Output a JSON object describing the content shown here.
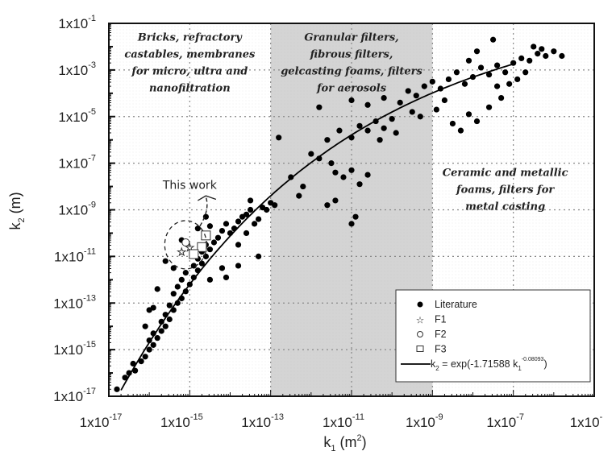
{
  "chart_data": {
    "type": "scatter",
    "title": "",
    "xlabel": "k1 (m2)",
    "xlabel_parts": {
      "base": "k",
      "sub": "1",
      "unit_open": " (m",
      "sup": "2",
      "unit_close": ")"
    },
    "ylabel": "k2 (m)",
    "ylabel_parts": {
      "base": "k",
      "sub": "2",
      "unit": " (m)"
    },
    "x_scale": "log",
    "y_scale": "log",
    "xlim": [
      1e-17,
      1e-05
    ],
    "ylim": [
      1e-17,
      0.1
    ],
    "grid": true,
    "x_ticks": [
      {
        "exp": -17,
        "label": "1x10",
        "sup": "-17"
      },
      {
        "exp": -15,
        "label": "1x10",
        "sup": "-15"
      },
      {
        "exp": -13,
        "label": "1x10",
        "sup": "-13"
      },
      {
        "exp": -11,
        "label": "1x10",
        "sup": "-11"
      },
      {
        "exp": -9,
        "label": "1x10",
        "sup": "-9"
      },
      {
        "exp": -7,
        "label": "1x10",
        "sup": "-7"
      },
      {
        "exp": -5,
        "label": "1x10",
        "sup": "-"
      }
    ],
    "y_ticks": [
      {
        "exp": -1,
        "label": "1x10",
        "sup": "-1"
      },
      {
        "exp": -3,
        "label": "1x10",
        "sup": "-3"
      },
      {
        "exp": -5,
        "label": "1x10",
        "sup": "-5"
      },
      {
        "exp": -7,
        "label": "1x10",
        "sup": "-7"
      },
      {
        "exp": -9,
        "label": "1x10",
        "sup": "-9"
      },
      {
        "exp": -11,
        "label": "1x10",
        "sup": "-11"
      },
      {
        "exp": -13,
        "label": "1x10",
        "sup": "-13"
      },
      {
        "exp": -15,
        "label": "1x10",
        "sup": "-15"
      },
      {
        "exp": -17,
        "label": "1x10",
        "sup": "-17"
      }
    ],
    "shaded_band": {
      "x_from_exp": -13,
      "x_to_exp": -9,
      "color": "#d4d4d4"
    },
    "regions": [
      {
        "name": "region-low-permeability",
        "lines": [
          "Bricks, refractory",
          "castables, membranes",
          "for micro, ultra and",
          "nanofiltration"
        ],
        "x_exp": -15,
        "y_exp_top": -1.75
      },
      {
        "name": "region-mid-permeability",
        "lines": [
          "Granular filters,",
          "fibrous filters,",
          "gelcasting foams, filters",
          "for aerosols"
        ],
        "x_exp": -11,
        "y_exp_top": -1.75
      },
      {
        "name": "region-high-permeability",
        "lines": [
          "Ceramic and metallic",
          "foams, filters for",
          "metal casting"
        ],
        "x_exp": -7.2,
        "y_exp_top": -7.55
      }
    ],
    "annotation": {
      "text": "This work",
      "x_exp": -15.0,
      "y_exp": -8.1
    },
    "fit": {
      "name": "k2 = exp(-1.71588 k1^-0.08093)",
      "a": -1.71588,
      "b": -0.08093,
      "x_from_exp": -16.7,
      "x_to_exp": -7.0
    },
    "legend": {
      "position": "lower right",
      "entries": [
        {
          "marker": "filled-circle",
          "label": "Literature"
        },
        {
          "marker": "star",
          "label": "F1"
        },
        {
          "marker": "open-circle",
          "label": "F2"
        },
        {
          "marker": "open-square",
          "label": "F3"
        },
        {
          "marker": "line",
          "label_base": "k",
          "label_sub1": "2",
          "label_mid": " = exp(-1.71588 k",
          "label_sub2": "1",
          "label_sup": "-0.08093",
          "label_end": ")"
        }
      ]
    },
    "series": [
      {
        "name": "Literature",
        "marker": "filled-circle",
        "points_log10": [
          [
            -16.8,
            -16.7
          ],
          [
            -16.6,
            -16.2
          ],
          [
            -16.5,
            -16.0
          ],
          [
            -16.35,
            -15.9
          ],
          [
            -16.4,
            -15.6
          ],
          [
            -16.2,
            -15.5
          ],
          [
            -16.1,
            -15.3
          ],
          [
            -16.0,
            -15.0
          ],
          [
            -15.9,
            -14.8
          ],
          [
            -16.0,
            -14.6
          ],
          [
            -15.8,
            -14.5
          ],
          [
            -15.7,
            -14.2
          ],
          [
            -15.9,
            -14.3
          ],
          [
            -15.6,
            -14.0
          ],
          [
            -15.7,
            -13.8
          ],
          [
            -15.5,
            -13.7
          ],
          [
            -15.6,
            -13.5
          ],
          [
            -15.4,
            -13.3
          ],
          [
            -15.5,
            -13.1
          ],
          [
            -15.3,
            -13.0
          ],
          [
            -16.1,
            -14.0
          ],
          [
            -15.9,
            -13.2
          ],
          [
            -15.2,
            -12.8
          ],
          [
            -15.4,
            -12.6
          ],
          [
            -15.1,
            -12.5
          ],
          [
            -15.3,
            -12.3
          ],
          [
            -15.0,
            -12.2
          ],
          [
            -15.2,
            -12.0
          ],
          [
            -14.9,
            -11.9
          ],
          [
            -15.1,
            -11.7
          ],
          [
            -14.8,
            -11.6
          ],
          [
            -14.9,
            -11.4
          ],
          [
            -14.7,
            -11.3
          ],
          [
            -14.8,
            -11.1
          ],
          [
            -14.6,
            -11.0
          ],
          [
            -14.7,
            -10.8
          ],
          [
            -14.5,
            -10.7
          ],
          [
            -14.6,
            -10.5
          ],
          [
            -14.4,
            -10.4
          ],
          [
            -14.3,
            -10.2
          ],
          [
            -14.5,
            -12.0
          ],
          [
            -14.2,
            -11.5
          ],
          [
            -14.0,
            -10.0
          ],
          [
            -14.2,
            -9.9
          ],
          [
            -13.9,
            -9.8
          ],
          [
            -14.1,
            -9.6
          ],
          [
            -13.8,
            -9.5
          ],
          [
            -13.7,
            -9.3
          ],
          [
            -13.6,
            -9.2
          ],
          [
            -13.5,
            -9.0
          ],
          [
            -13.8,
            -10.5
          ],
          [
            -13.6,
            -10.0
          ],
          [
            -13.4,
            -9.6
          ],
          [
            -13.3,
            -9.4
          ],
          [
            -13.2,
            -8.9
          ],
          [
            -13.0,
            -8.7
          ],
          [
            -13.1,
            -9.0
          ],
          [
            -12.9,
            -8.8
          ],
          [
            -13.5,
            -8.6
          ],
          [
            -15.6,
            -11.2
          ],
          [
            -15.8,
            -12.4
          ],
          [
            -16.0,
            -13.3
          ],
          [
            -15.2,
            -10.3
          ],
          [
            -14.8,
            -9.8
          ],
          [
            -14.6,
            -9.3
          ],
          [
            -14.5,
            -9.7
          ],
          [
            -15.4,
            -11.5
          ],
          [
            -13.3,
            -11.0
          ],
          [
            -13.8,
            -11.4
          ],
          [
            -14.1,
            -11.9
          ],
          [
            -12.5,
            -7.6
          ],
          [
            -12.3,
            -8.4
          ],
          [
            -12.0,
            -6.6
          ],
          [
            -11.8,
            -6.8
          ],
          [
            -11.5,
            -7.0
          ],
          [
            -11.4,
            -7.4
          ],
          [
            -11.2,
            -7.6
          ],
          [
            -11.0,
            -7.3
          ],
          [
            -10.8,
            -7.9
          ],
          [
            -10.6,
            -7.5
          ],
          [
            -11.6,
            -6.0
          ],
          [
            -11.3,
            -5.6
          ],
          [
            -11.0,
            -5.9
          ],
          [
            -10.8,
            -5.4
          ],
          [
            -10.6,
            -5.6
          ],
          [
            -10.4,
            -5.2
          ],
          [
            -10.2,
            -5.5
          ],
          [
            -10.0,
            -5.1
          ],
          [
            -10.3,
            -6.0
          ],
          [
            -9.9,
            -5.7
          ],
          [
            -12.8,
            -5.9
          ],
          [
            -12.2,
            -8.0
          ],
          [
            -11.6,
            -8.8
          ],
          [
            -11.4,
            -8.6
          ],
          [
            -11.0,
            -9.6
          ],
          [
            -10.9,
            -9.3
          ],
          [
            -11.8,
            -4.6
          ],
          [
            -11.0,
            -4.3
          ],
          [
            -10.6,
            -4.5
          ],
          [
            -10.2,
            -4.2
          ],
          [
            -9.8,
            -4.4
          ],
          [
            -9.6,
            -3.9
          ],
          [
            -9.4,
            -4.1
          ],
          [
            -9.2,
            -3.7
          ],
          [
            -9.0,
            -3.5
          ],
          [
            -8.8,
            -3.8
          ],
          [
            -8.6,
            -3.4
          ],
          [
            -8.4,
            -3.1
          ],
          [
            -8.2,
            -3.6
          ],
          [
            -8.0,
            -3.3
          ],
          [
            -9.5,
            -4.8
          ],
          [
            -9.3,
            -5.0
          ],
          [
            -8.9,
            -4.7
          ],
          [
            -8.7,
            -4.3
          ],
          [
            -8.5,
            -5.3
          ],
          [
            -8.3,
            -5.6
          ],
          [
            -8.1,
            -4.9
          ],
          [
            -7.9,
            -5.2
          ],
          [
            -7.6,
            -4.6
          ],
          [
            -7.4,
            -3.7
          ],
          [
            -7.8,
            -2.9
          ],
          [
            -7.6,
            -3.2
          ],
          [
            -7.4,
            -2.8
          ],
          [
            -7.2,
            -3.1
          ],
          [
            -7.0,
            -2.7
          ],
          [
            -6.8,
            -2.5
          ],
          [
            -6.6,
            -2.6
          ],
          [
            -6.4,
            -2.3
          ],
          [
            -6.2,
            -2.4
          ],
          [
            -6.0,
            -2.2
          ],
          [
            -7.9,
            -2.2
          ],
          [
            -8.1,
            -2.6
          ],
          [
            -7.5,
            -1.7
          ],
          [
            -7.1,
            -3.6
          ],
          [
            -6.9,
            -3.4
          ],
          [
            -6.5,
            -2.0
          ],
          [
            -6.3,
            -2.1
          ],
          [
            -5.8,
            -2.4
          ],
          [
            -6.7,
            -3.1
          ],
          [
            -7.3,
            -4.2
          ]
        ]
      },
      {
        "name": "F1",
        "marker": "star",
        "points_log10": [
          [
            -15.0,
            -10.6
          ],
          [
            -15.2,
            -10.8
          ]
        ]
      },
      {
        "name": "F2",
        "marker": "open-circle",
        "points_log10": [
          [
            -15.1,
            -10.4
          ]
        ]
      },
      {
        "name": "F3",
        "marker": "open-square",
        "points_log10": [
          [
            -14.7,
            -10.6
          ],
          [
            -14.6,
            -10.1
          ],
          [
            -14.9,
            -10.9
          ]
        ]
      }
    ]
  },
  "colors": {
    "axis": "#111111",
    "grid": "#888888",
    "band": "#d4d4d4",
    "marker": "#000000",
    "background": "#ffffff"
  }
}
